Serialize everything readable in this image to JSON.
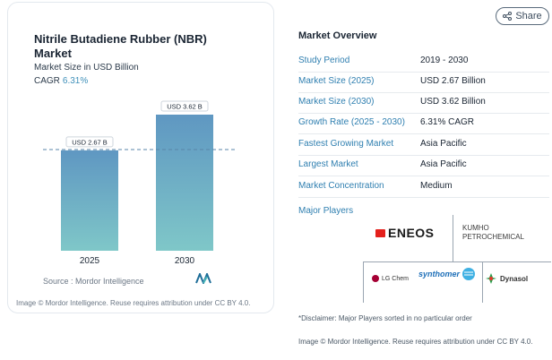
{
  "chart": {
    "title": "Nitrile Butadiene Rubber (NBR) Market",
    "subtitle": "Market Size in USD Billion",
    "cagr_label": "CAGR",
    "cagr_value": "6.31%",
    "source": "Source :  Mordor Intelligence",
    "footer": "Image © Mordor Intelligence. Reuse requires attribution under CC BY 4.0."
  },
  "chart_data": {
    "type": "bar",
    "categories": [
      "2025",
      "2030"
    ],
    "values": [
      2.67,
      3.62
    ],
    "value_labels": [
      "USD 2.67 B",
      "USD 3.62 B"
    ],
    "ylim": [
      0,
      3.62
    ],
    "grid": false,
    "colors": {
      "bar_top": "#5f97c2",
      "bar_bottom": "#7fc7c8"
    }
  },
  "share": {
    "label": "Share"
  },
  "overview": {
    "title": "Market Overview",
    "rows": [
      {
        "key": "Study Period",
        "value": "2019 - 2030"
      },
      {
        "key": "Market Size (2025)",
        "value": "USD 2.67 Billion"
      },
      {
        "key": "Market Size (2030)",
        "value": "USD 3.62 Billion"
      },
      {
        "key": "Growth Rate (2025 - 2030)",
        "value": "6.31% CAGR"
      },
      {
        "key": "Fastest Growing Market",
        "value": "Asia Pacific"
      },
      {
        "key": "Largest Market",
        "value": "Asia Pacific"
      },
      {
        "key": "Market Concentration",
        "value": "Medium"
      }
    ],
    "major_players_label": "Major Players",
    "players": [
      "ENEOS",
      "KUMHO PETROCHEMICAL",
      "LG Chem",
      "synthomer",
      "Dynasol"
    ],
    "disclaimer": "*Disclaimer: Major Players sorted in no particular order",
    "footer": "Image © Mordor Intelligence. Reuse requires attribution under CC BY 4.0."
  }
}
